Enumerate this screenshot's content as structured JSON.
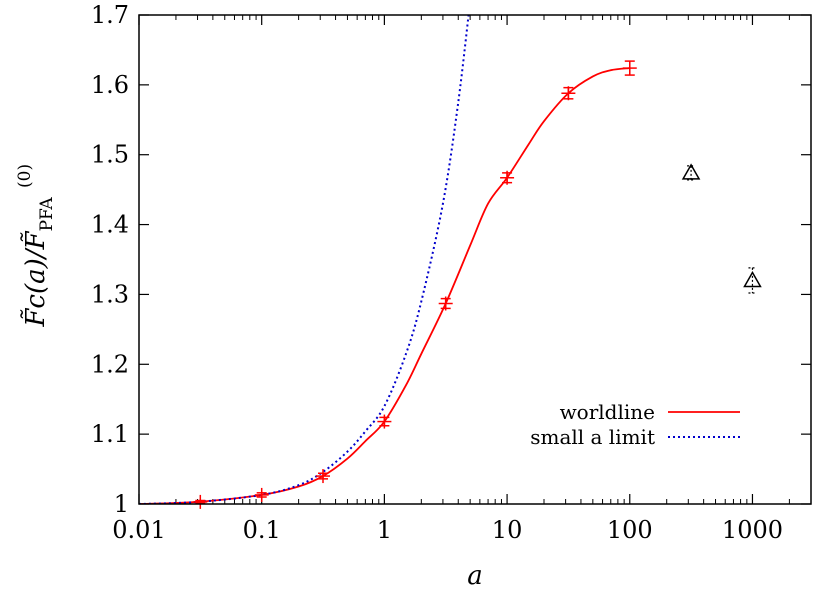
{
  "chart_data": {
    "type": "scatter",
    "title": "",
    "xlabel": "a",
    "ylabel": {
      "main": "F̃c(a)/F̃",
      "super": "(0)",
      "sub": "PFA"
    },
    "xscale": "log",
    "xlim": [
      0.01,
      3000
    ],
    "ylim": [
      1.0,
      1.7
    ],
    "x_ticks": [
      {
        "value": 0.01,
        "label": "0.01"
      },
      {
        "value": 0.1,
        "label": "0.1"
      },
      {
        "value": 1,
        "label": "1"
      },
      {
        "value": 10,
        "label": "10"
      },
      {
        "value": 100,
        "label": "100"
      },
      {
        "value": 1000,
        "label": "1000"
      }
    ],
    "y_ticks": [
      {
        "value": 1.0,
        "label": "1"
      },
      {
        "value": 1.1,
        "label": "1.1"
      },
      {
        "value": 1.2,
        "label": "1.2"
      },
      {
        "value": 1.3,
        "label": "1.3"
      },
      {
        "value": 1.4,
        "label": "1.4"
      },
      {
        "value": 1.5,
        "label": "1.5"
      },
      {
        "value": 1.6,
        "label": "1.6"
      },
      {
        "value": 1.7,
        "label": "1.7"
      }
    ],
    "legend_position": "bottom-right",
    "series": [
      {
        "name": "worldline",
        "color": "#ff0000",
        "style": "solid",
        "kind": "line",
        "x": [
          0.01,
          0.03,
          0.1,
          0.2,
          0.316,
          0.5,
          0.7,
          1.0,
          1.5,
          2.0,
          3.16,
          5.0,
          7.0,
          10,
          15,
          20,
          31.6,
          50,
          70,
          100
        ],
        "y": [
          1.0,
          1.003,
          1.013,
          1.025,
          1.04,
          1.065,
          1.09,
          1.118,
          1.17,
          1.215,
          1.287,
          1.37,
          1.43,
          1.467,
          1.515,
          1.548,
          1.588,
          1.612,
          1.621,
          1.624
        ]
      },
      {
        "name": "small a limit",
        "color": "#0000cc",
        "style": "dotted",
        "kind": "line",
        "x": [
          0.01,
          0.03,
          0.1,
          0.2,
          0.316,
          0.5,
          0.7,
          1.0,
          1.5,
          2.0,
          3.0,
          4.0,
          5.0
        ],
        "y": [
          1.0,
          1.003,
          1.013,
          1.027,
          1.046,
          1.075,
          1.104,
          1.14,
          1.215,
          1.29,
          1.43,
          1.575,
          1.72
        ]
      },
      {
        "name": "",
        "color": "#ff0000",
        "kind": "points",
        "marker": "plus",
        "points": [
          {
            "x": 0.0316,
            "y": 1.003,
            "err": 0.002
          },
          {
            "x": 0.1,
            "y": 1.013,
            "err": 0.003
          },
          {
            "x": 0.316,
            "y": 1.04,
            "err": 0.004
          },
          {
            "x": 1.0,
            "y": 1.118,
            "err": 0.006
          },
          {
            "x": 3.16,
            "y": 1.287,
            "err": 0.007
          },
          {
            "x": 10,
            "y": 1.467,
            "err": 0.007
          },
          {
            "x": 31.6,
            "y": 1.588,
            "err": 0.008
          },
          {
            "x": 100,
            "y": 1.624,
            "err": 0.01
          }
        ]
      },
      {
        "name": "",
        "color": "#000000",
        "kind": "points",
        "marker": "triangle",
        "points": [
          {
            "x": 316,
            "y": 1.474,
            "err": 0.01
          },
          {
            "x": 1000,
            "y": 1.32,
            "err": 0.018
          }
        ]
      }
    ]
  }
}
